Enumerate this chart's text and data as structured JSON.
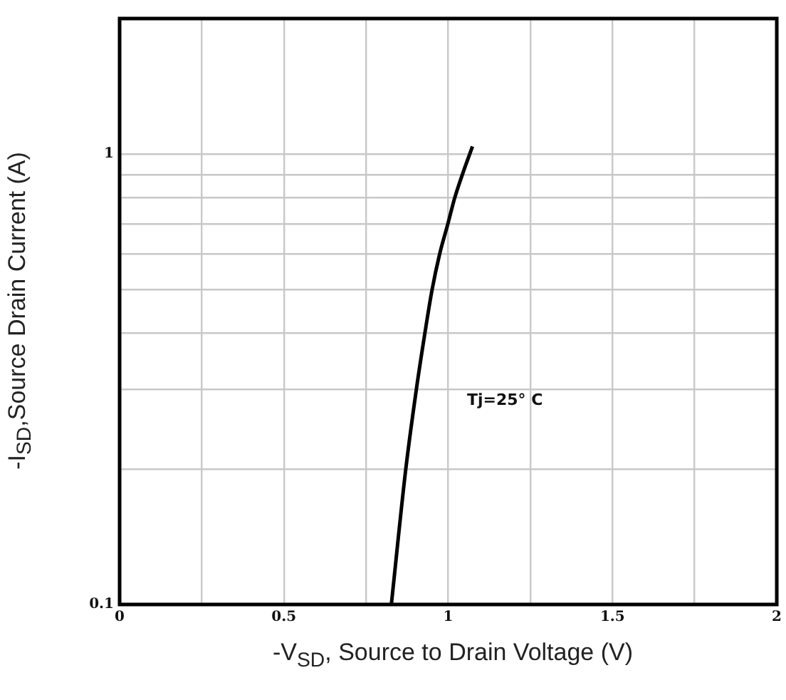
{
  "chart_data": {
    "type": "line",
    "xlabel": "-V$_{SD}$, Source to Drain Voltage (V)",
    "ylabel": "-I$_{SD}$,Source Drain Current (A)",
    "series": [
      {
        "color": "#000000",
        "x": [
          0.827,
          0.871,
          0.903,
          0.929,
          0.951,
          0.974,
          0.999,
          1.02,
          1.043,
          1.074
        ],
        "values": [
          0.1,
          0.2,
          0.3,
          0.4,
          0.5,
          0.6,
          0.7,
          0.8,
          0.9,
          1.04
        ]
      }
    ],
    "xlim": [
      0,
      2
    ],
    "xticks": [
      0,
      {
        "value": 0.25,
        "label": null
      },
      0.5,
      {
        "value": 0.75,
        "label": null
      },
      1,
      {
        "value": 1.25,
        "label": null
      },
      1.5,
      {
        "value": 1.75,
        "label": null
      },
      2
    ],
    "ylim": [
      0.1,
      2
    ],
    "yticks": [
      0.1,
      {
        "value": 0.2,
        "label": null
      },
      {
        "value": 0.3,
        "label": null
      },
      {
        "value": 0.4,
        "label": null
      },
      {
        "value": 0.5,
        "label": null
      },
      {
        "value": 0.6,
        "label": null
      },
      {
        "value": 0.7,
        "label": null
      },
      {
        "value": 0.8,
        "label": null
      },
      {
        "value": 0.9,
        "label": null
      },
      1,
      {
        "value": 2,
        "label": null
      }
    ],
    "log": "y",
    "grid": true,
    "legend": false,
    "marker": "none",
    "line_style": "solid",
    "annotations": [
      "Tj=25° C"
    ]
  }
}
